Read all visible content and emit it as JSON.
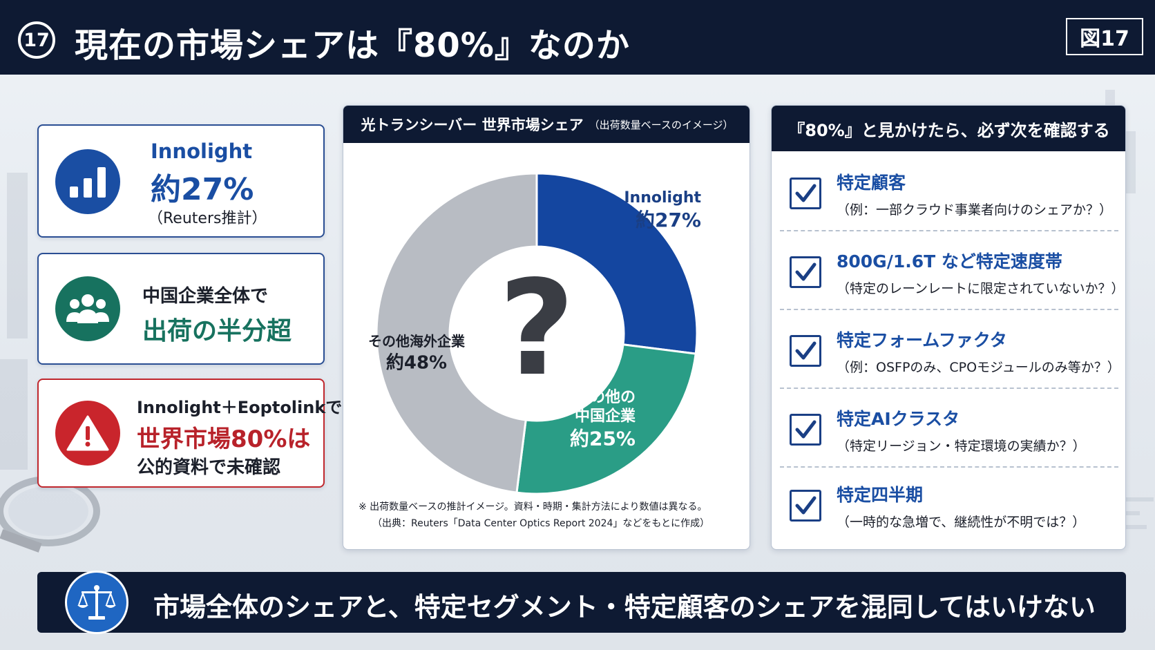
{
  "header": {
    "number": "17",
    "title": "現在の市場シェアは『80%』なのか",
    "figure_label": "図17"
  },
  "left_cards": {
    "innolight": {
      "name": "Innolight",
      "value": "約27%",
      "note": "（Reuters推計）",
      "icon": "bar-chart-icon",
      "color": "#1a4ea3"
    },
    "china": {
      "line1": "中国企業全体で",
      "line2": "出荷の半分超",
      "icon": "people-group-icon",
      "color": "#17725f"
    },
    "warning": {
      "line1": "Innolight＋Eoptolinkで",
      "line2": "世界市場80%は",
      "line3": "公的資料で未確認",
      "icon": "warning-icon",
      "color": "#c9252c"
    }
  },
  "chart_panel": {
    "title": "光トランシーバー 世界市場シェア",
    "subtitle": "（出荷数量ベースのイメージ）",
    "center_symbol": "?",
    "note1": "※ 出荷数量ベースの推計イメージ。資料・時期・集計方法により数値は異なる。",
    "note2": "（出典：Reuters「Data Center Optics Report 2024」などをもとに作成）"
  },
  "chart_data": {
    "type": "pie",
    "variant": "donut",
    "title": "光トランシーバー 世界市場シェア",
    "subtitle": "（出荷数量ベースのイメージ）",
    "unit": "%",
    "series": [
      {
        "name": "Innolight",
        "label_lines": [
          "Innolight",
          "約27%"
        ],
        "value": 27,
        "color": "#1446a0",
        "text_color": "#1a3f85"
      },
      {
        "name": "その他の中国企業",
        "label_lines": [
          "その他の",
          "中国企業",
          "約25%"
        ],
        "value": 25,
        "color": "#2a9d86",
        "text_color": "#ffffff"
      },
      {
        "name": "その他海外企業",
        "label_lines": [
          "その他海外企業",
          "約48%"
        ],
        "value": 48,
        "color": "#b8bcc3",
        "text_color": "#1b1f2a"
      }
    ]
  },
  "check_panel": {
    "title": "『80%』と見かけたら、必ず次を確認する",
    "items": [
      {
        "title": "特定顧客",
        "desc": "（例：一部クラウド事業者向けのシェアか？）"
      },
      {
        "title": "800G/1.6T など特定速度帯",
        "desc": "（特定のレーンレートに限定されていないか？）"
      },
      {
        "title": "特定フォームファクタ",
        "desc": "（例：OSFPのみ、CPOモジュールのみ等か？）"
      },
      {
        "title": "特定AIクラスタ",
        "desc": "（特定リージョン・特定環境の実績か？）"
      },
      {
        "title": "特定四半期",
        "desc": "（一時的な急増で、継続性が不明では？）"
      }
    ]
  },
  "bottom_banner": {
    "text": "市場全体のシェアと、特定セグメント・特定顧客のシェアを混同してはいけない",
    "icon": "scales-of-justice-icon"
  }
}
